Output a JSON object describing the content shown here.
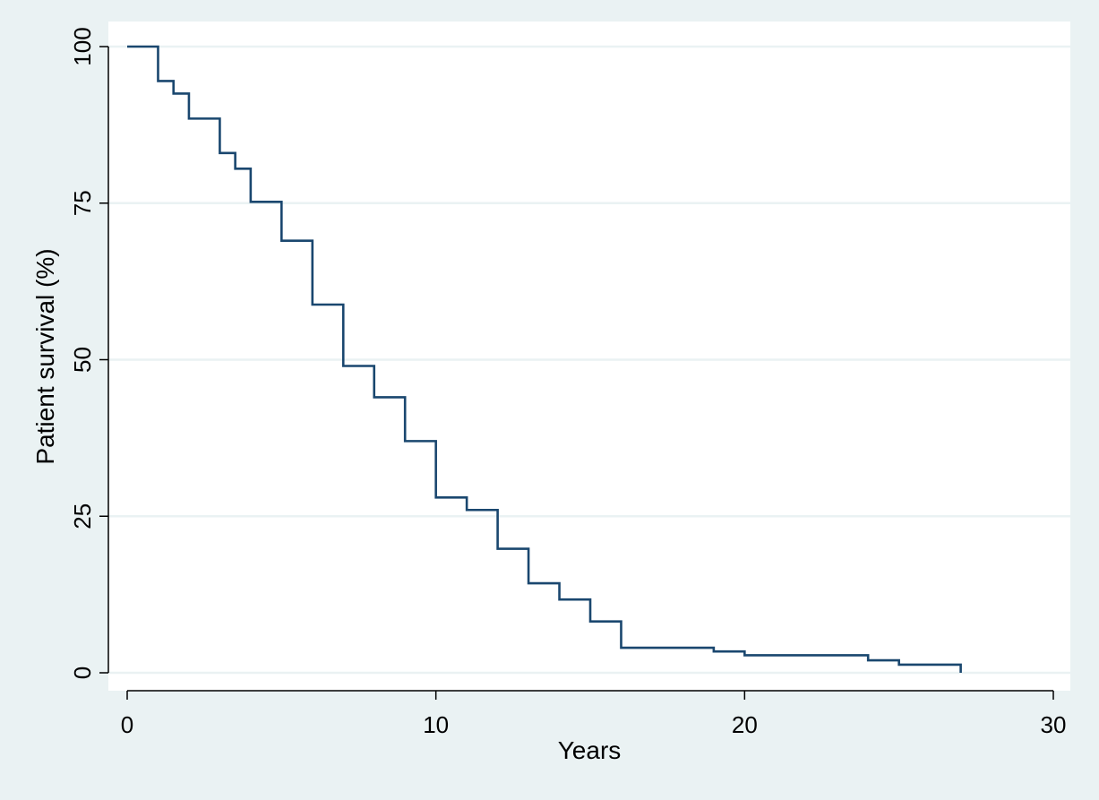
{
  "chart_data": {
    "type": "line",
    "step": true,
    "title": "",
    "xlabel": "Years",
    "ylabel": "Patient survival (%)",
    "xlim": [
      0,
      30
    ],
    "ylim": [
      0,
      100
    ],
    "x_ticks": [
      0,
      10,
      20,
      30
    ],
    "y_ticks": [
      0,
      25,
      50,
      75,
      100
    ],
    "x_tick_labels": [
      "0",
      "10",
      "20",
      "30"
    ],
    "y_tick_labels": [
      "0",
      "25",
      "50",
      "75",
      "100"
    ],
    "grid": "horizontal",
    "legend": "none",
    "colors": {
      "background": "#eaf2f3",
      "plot_background": "#ffffff",
      "gridline": "#eaf2f3",
      "line": "#1a476f"
    },
    "series": [
      {
        "x": [
          0,
          1,
          1.5,
          2,
          3,
          3.5,
          4,
          5,
          6,
          7,
          8,
          9,
          10,
          11,
          12,
          13,
          14,
          15,
          16,
          19,
          20,
          24,
          25,
          27
        ],
        "y": [
          100,
          94.5,
          92.5,
          88.5,
          83,
          80.5,
          75.2,
          69,
          58.8,
          49,
          44,
          37,
          28,
          26,
          19.8,
          14.3,
          11.7,
          8.2,
          4,
          3.4,
          2.8,
          2,
          1.3,
          0
        ]
      }
    ]
  }
}
